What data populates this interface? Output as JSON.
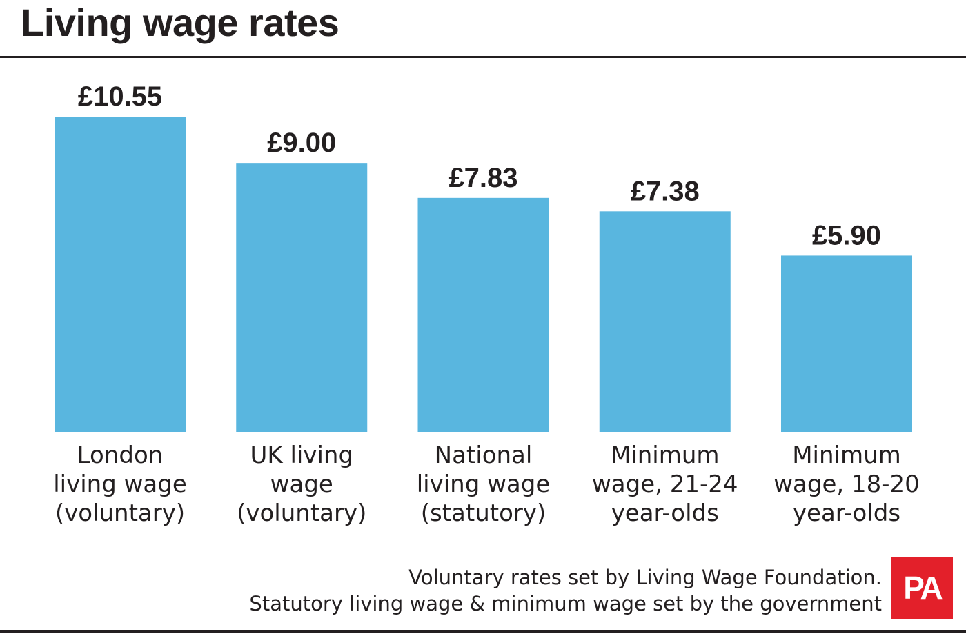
{
  "title": "Living wage rates",
  "colors": {
    "bar": "#59b6df",
    "text": "#231f20",
    "logo_bg": "#e3202a"
  },
  "chart_data": {
    "type": "bar",
    "title": "Living wage rates",
    "categories": [
      [
        "London",
        "living wage",
        "(voluntary)"
      ],
      [
        "UK living",
        "wage",
        "(voluntary)"
      ],
      [
        "National",
        "living wage",
        "(statutory)"
      ],
      [
        "Minimum",
        "wage, 21-24",
        "year-olds"
      ],
      [
        "Minimum",
        "wage, 18-20",
        "year-olds"
      ]
    ],
    "values": [
      10.55,
      9.0,
      7.83,
      7.38,
      5.9
    ],
    "value_labels": [
      "£10.55",
      "£9.00",
      "£7.83",
      "£7.38",
      "£5.90"
    ],
    "xlabel": "",
    "ylabel": "",
    "ylim": [
      0,
      10.55
    ],
    "grid": false,
    "legend": "none"
  },
  "source": {
    "line1": "Voluntary rates set by Living Wage Foundation.",
    "line2": "Statutory living wage & minimum wage set by the government"
  },
  "logo": {
    "text": "PA"
  }
}
